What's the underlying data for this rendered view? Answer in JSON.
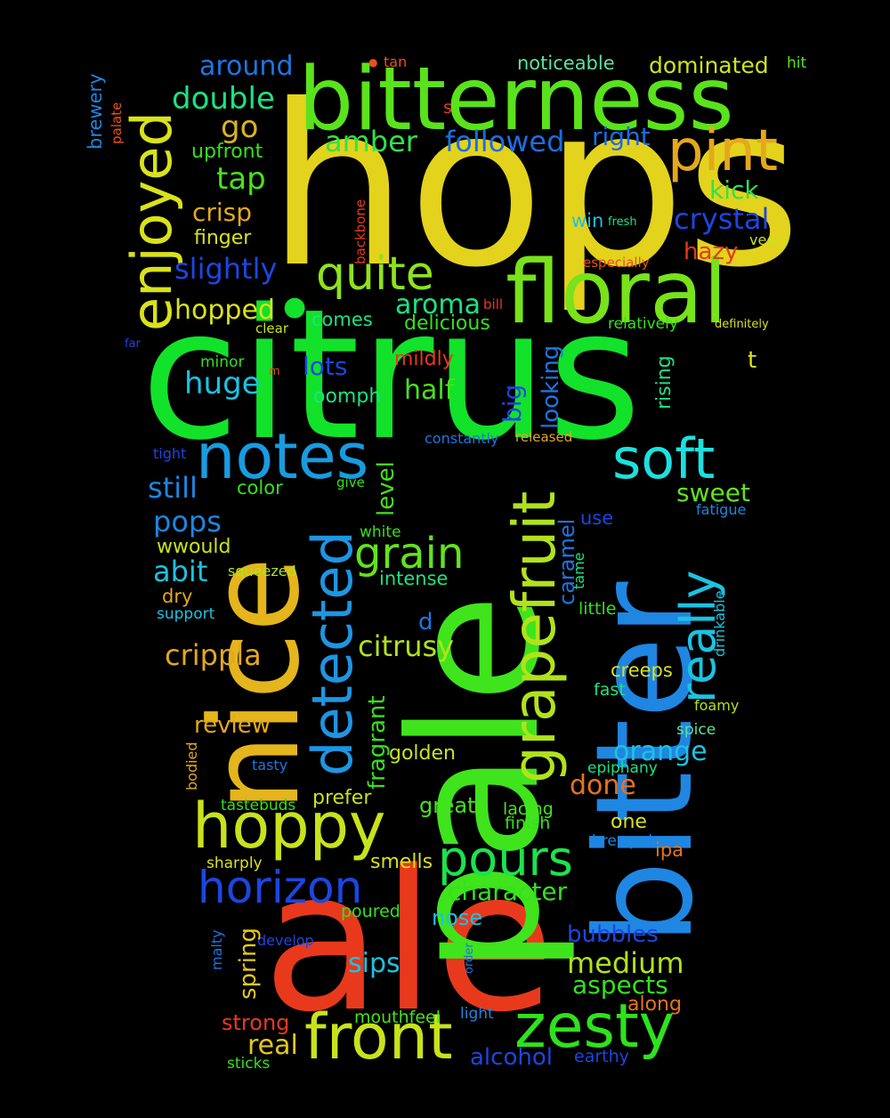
{
  "word_cloud": {
    "background": "#000000",
    "words": {
      "hops": "hops",
      "citrus": "citrus",
      "pale": "pale",
      "ale": "ale",
      "bitter": "bitter",
      "nice": "nice",
      "bitterness": "bitterness",
      "floral": "floral",
      "front": "front",
      "zesty": "zesty",
      "grapefruit": "grapefruit",
      "detected": "detected",
      "notes": "notes",
      "hoppy": "hoppy",
      "soft": "soft",
      "enjoyed": "enjoyed",
      "pint": "pint",
      "quite": "quite",
      "really": "really",
      "horizon": "horizon",
      "pours": "pours",
      "grain": "grain",
      "around": "around",
      "double": "double",
      "go": "go",
      "upfront": "upfront",
      "tap": "tap",
      "amber": "amber",
      "followed": "followed",
      "right": "right",
      "noticeable": "noticeable",
      "dominated": "dominated",
      "hit": "hit",
      "tan": "tan",
      "s": "s",
      "brewery": "brewery",
      "palate": "palate",
      "crisp": "crisp",
      "finger": "finger",
      "slightly": "slightly",
      "hopped": "hopped",
      "kick": "kick",
      "crystal": "crystal",
      "win": "win",
      "fresh": "fresh",
      "veery": "veery",
      "hazy": "hazy",
      "especially": "especially",
      "backbone": "backbone",
      "aroma": "aroma",
      "bill": "bill",
      "comes": "comes",
      "delicious": "delicious",
      "relatively": "relatively",
      "definitely": "definitely",
      "clear": "clear",
      "far": "far",
      "minor": "minor",
      "m": "m",
      "lots": "lots",
      "mildly": "mildly",
      "huge": "huge",
      "half": "half",
      "oomph": "oomph",
      "big": "big",
      "looking": "looking",
      "rising": "rising",
      "t": "t",
      "tight": "tight",
      "constantly": "constantly",
      "released": "released",
      "still": "still",
      "color": "color",
      "level": "level",
      "give": "give",
      "sweet": "sweet",
      "fatigue": "fatigue",
      "pops": "pops",
      "use": "use",
      "white": "white",
      "wwould": "wwould",
      "abit": "abit",
      "caramel": "caramel",
      "squeezed": "squeezed",
      "intense": "intense",
      "tame": "tame",
      "dry": "dry",
      "support": "support",
      "little": "little",
      "drinkable": "drinkable",
      "d": "d",
      "crippla": "crippla",
      "citrusy": "citrusy",
      "fragrant": "fragrant",
      "creeps": "creeps",
      "fast": "fast",
      "review": "review",
      "foamy": "foamy",
      "spice": "spice",
      "golden": "golden",
      "orange": "orange",
      "bodied": "bodied",
      "tasty": "tasty",
      "epiphany": "epiphany",
      "done": "done",
      "prefer": "prefer",
      "tastebuds": "tastebuds",
      "great": "great",
      "lacing": "lacing",
      "finish": "finish",
      "one": "one",
      "brewpub": "brewpub",
      "ipa": "ipa",
      "sharply": "sharply",
      "smells": "smells",
      "character": "character",
      "poured": "poured",
      "nose": "nose",
      "malty": "malty",
      "develop": "develop",
      "spring": "spring",
      "order": "order",
      "bubbles": "bubbles",
      "medium": "medium",
      "sips": "sips",
      "aspects": "aspects",
      "along": "along",
      "strong": "strong",
      "mouthfeel": "mouthfeel",
      "light": "light",
      "real": "real",
      "alcohol": "alcohol",
      "earthy": "earthy",
      "sticks": "sticks"
    }
  }
}
